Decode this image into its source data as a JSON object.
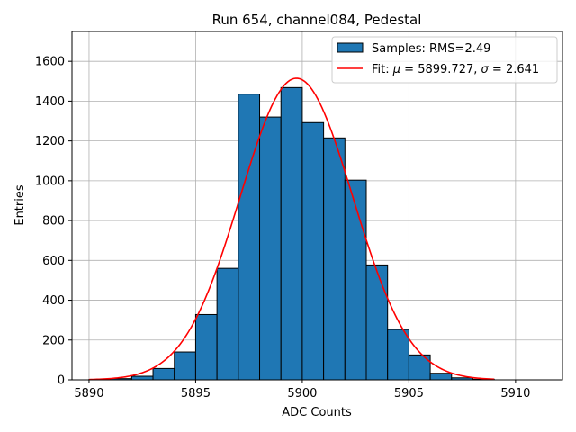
{
  "chart_data": {
    "type": "bar",
    "title": "Run 654, channel084, Pedestal",
    "xlabel": "ADC Counts",
    "ylabel": "Entries",
    "xlim": [
      5889.2,
      5912.2
    ],
    "ylim": [
      0,
      1750
    ],
    "grid": true,
    "legend_position": "top-right",
    "x_ticks": [
      5890,
      5895,
      5900,
      5905,
      5910
    ],
    "y_ticks": [
      0,
      200,
      400,
      600,
      800,
      1000,
      1200,
      1400,
      1600
    ],
    "series": [
      {
        "name": "Samples: RMS=2.49",
        "type": "histogram",
        "color": "#1f77b4",
        "edge_color": "#000000",
        "bin_width": 1,
        "bin_starts": [
          5890,
          5891,
          5892,
          5893,
          5894,
          5895,
          5896,
          5897,
          5898,
          5899,
          5900,
          5901,
          5902,
          5903,
          5904,
          5905,
          5906,
          5907,
          5908
        ],
        "values": [
          2,
          6,
          18,
          57,
          140,
          328,
          560,
          1435,
          1320,
          1468,
          1292,
          1215,
          1003,
          577,
          253,
          125,
          33,
          10,
          3
        ]
      },
      {
        "name": "Fit: μ = 5899.727, σ = 2.641",
        "type": "line",
        "color": "#ff0000",
        "fit": {
          "mu": 5899.727,
          "sigma": 2.641,
          "amplitude": 1515,
          "x_range": [
            5890,
            5909
          ]
        }
      }
    ],
    "legend": {
      "samples_prefix": "Samples: RMS=",
      "samples_value": "2.49",
      "fit_prefix": "Fit: ",
      "mu_symbol": "μ",
      "equals": " = ",
      "mu_value": "5899.727",
      "separator": ", ",
      "sigma_symbol": "σ",
      "sigma_value": "2.641"
    }
  }
}
